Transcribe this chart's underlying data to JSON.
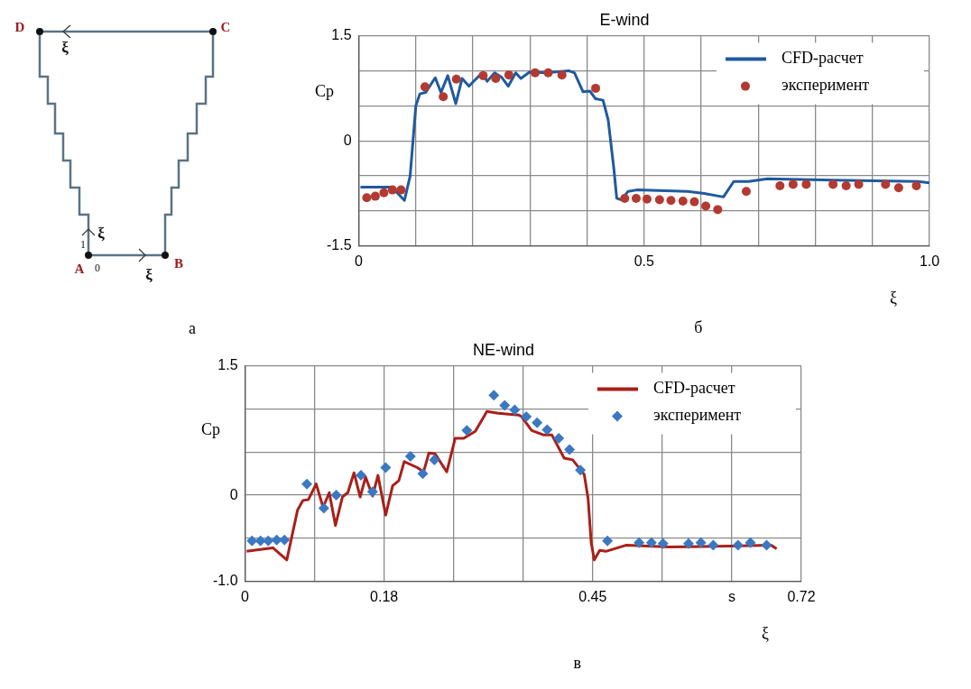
{
  "chart_data": [
    {
      "type": "other",
      "annotations": [
        "D",
        "C",
        "A",
        "B",
        "ξ",
        "ξ",
        "ξ",
        "1",
        "0",
        "а"
      ]
    },
    {
      "type": "line",
      "title": "E-wind",
      "ylabel": "Cp",
      "xlabel": "ξ",
      "annotations": [
        "б"
      ],
      "xlim": [
        0,
        1
      ],
      "ylim": [
        -1.5,
        1.5
      ],
      "xticks": [
        0,
        {
          "value": 0.1,
          "label": null
        },
        {
          "value": 0.2,
          "label": null
        },
        {
          "value": 0.3,
          "label": null
        },
        {
          "value": 0.4,
          "label": null
        },
        0.5,
        {
          "value": 0.6,
          "label": null
        },
        {
          "value": 0.7,
          "label": null
        },
        {
          "value": 0.8,
          "label": null
        },
        {
          "value": 0.9,
          "label": null
        },
        {
          "value": 1,
          "label": "1.0"
        }
      ],
      "yticks": [
        1.5,
        {
          "value": 1,
          "label": null
        },
        {
          "value": 0.5,
          "label": null
        },
        0,
        {
          "value": -0.5,
          "label": null
        },
        {
          "value": -1,
          "label": null
        },
        -1.5
      ],
      "grid": true,
      "legend": "top right",
      "series": [
        {
          "name": "CFD-расчет",
          "type": "line",
          "color": "#1f5a9e",
          "marker": "none",
          "x": [
            0.003,
            0.058,
            0.08,
            0.09,
            0.1,
            0.107,
            0.117,
            0.134,
            0.144,
            0.156,
            0.17,
            0.181,
            0.193,
            0.216,
            0.225,
            0.238,
            0.25,
            0.262,
            0.275,
            0.284,
            0.299,
            0.328,
            0.368,
            0.378,
            0.393,
            0.405,
            0.415,
            0.428,
            0.437,
            0.447,
            0.452,
            0.46,
            0.472,
            0.487,
            0.575,
            0.605,
            0.639,
            0.657,
            0.683,
            0.716,
            0.832,
            0.98,
            1.0
          ],
          "values": [
            -0.66,
            -0.66,
            -0.85,
            -0.5,
            0.5,
            0.67,
            0.69,
            0.9,
            0.69,
            0.93,
            0.53,
            0.89,
            0.78,
            0.97,
            0.85,
            0.97,
            0.91,
            0.78,
            0.97,
            0.89,
            0.98,
            0.97,
            1.0,
            0.97,
            0.7,
            0.71,
            0.6,
            0.58,
            0.3,
            -0.4,
            -0.82,
            -0.84,
            -0.72,
            -0.7,
            -0.72,
            -0.75,
            -0.8,
            -0.58,
            -0.58,
            -0.54,
            -0.56,
            -0.58,
            -0.6
          ]
        },
        {
          "name": "эксперимент",
          "type": "scatter",
          "color": "#b23a32",
          "marker": "circle",
          "x": [
            0.014,
            0.029,
            0.044,
            0.059,
            0.074,
            0.116,
            0.148,
            0.171,
            0.218,
            0.24,
            0.263,
            0.309,
            0.332,
            0.356,
            0.415,
            0.466,
            0.486,
            0.505,
            0.527,
            0.547,
            0.568,
            0.588,
            0.608,
            0.629,
            0.679,
            0.738,
            0.761,
            0.784,
            0.831,
            0.854,
            0.876,
            0.923,
            0.946,
            0.977
          ],
          "values": [
            -0.81,
            -0.79,
            -0.74,
            -0.7,
            -0.7,
            0.77,
            0.63,
            0.88,
            0.93,
            0.89,
            0.94,
            0.97,
            0.97,
            0.94,
            0.75,
            -0.82,
            -0.82,
            -0.83,
            -0.84,
            -0.85,
            -0.86,
            -0.87,
            -0.93,
            -0.98,
            -0.72,
            -0.64,
            -0.62,
            -0.62,
            -0.62,
            -0.64,
            -0.62,
            -0.62,
            -0.67,
            -0.64
          ]
        }
      ]
    },
    {
      "type": "line",
      "title": "NE-wind",
      "ylabel": "Cp",
      "xlabel": "ξ",
      "annotations": [
        "в"
      ],
      "xlim": [
        0,
        0.72
      ],
      "ylim": [
        -1,
        1.5
      ],
      "xticks": [
        0,
        {
          "value": 0.09,
          "label": null
        },
        0.18,
        {
          "value": 0.27,
          "label": null
        },
        {
          "value": 0.36,
          "label": null
        },
        0.45,
        {
          "value": 0.54,
          "label": null
        },
        {
          "value": 0.63,
          "label": "s"
        },
        0.72
      ],
      "yticks": [
        1.5,
        {
          "value": 1,
          "label": null
        },
        {
          "value": 0.5,
          "label": null
        },
        0,
        {
          "value": -0.5,
          "label": null
        },
        {
          "value": -1,
          "label": "-1.0"
        }
      ],
      "grid": true,
      "legend": "top right",
      "series": [
        {
          "name": "CFD-расчет",
          "type": "line",
          "color": "#a8201a",
          "marker": "none",
          "x": [
            0.002,
            0.036,
            0.054,
            0.068,
            0.075,
            0.082,
            0.092,
            0.101,
            0.109,
            0.117,
            0.126,
            0.133,
            0.141,
            0.149,
            0.156,
            0.165,
            0.172,
            0.182,
            0.191,
            0.199,
            0.206,
            0.223,
            0.231,
            0.238,
            0.246,
            0.261,
            0.272,
            0.283,
            0.298,
            0.313,
            0.328,
            0.354,
            0.358,
            0.371,
            0.386,
            0.397,
            0.413,
            0.424,
            0.439,
            0.444,
            0.448,
            0.452,
            0.459,
            0.467,
            0.493,
            0.549,
            0.628,
            0.681,
            0.688
          ],
          "values": [
            -0.65,
            -0.61,
            -0.75,
            -0.17,
            -0.06,
            -0.05,
            0.13,
            -0.14,
            0.03,
            -0.35,
            -0.02,
            0.03,
            0.26,
            -0.02,
            0.21,
            -0.01,
            0.23,
            -0.23,
            0.11,
            0.17,
            0.39,
            0.32,
            0.27,
            0.49,
            0.48,
            0.27,
            0.66,
            0.66,
            0.74,
            0.97,
            0.95,
            0.93,
            0.91,
            0.75,
            0.7,
            0.7,
            0.43,
            0.41,
            0.24,
            -0.04,
            -0.55,
            -0.75,
            -0.64,
            -0.65,
            -0.58,
            -0.6,
            -0.59,
            -0.58,
            -0.62
          ]
        },
        {
          "name": "эксперимент",
          "type": "scatter",
          "color": "#3a78c2",
          "marker": "diamond",
          "x": [
            0.009,
            0.02,
            0.03,
            0.041,
            0.051,
            0.08,
            0.102,
            0.118,
            0.15,
            0.165,
            0.182,
            0.214,
            0.23,
            0.245,
            0.287,
            0.322,
            0.336,
            0.349,
            0.364,
            0.378,
            0.391,
            0.406,
            0.42,
            0.434,
            0.469,
            0.51,
            0.526,
            0.541,
            0.574,
            0.59,
            0.606,
            0.638,
            0.654,
            0.675
          ],
          "values": [
            -0.53,
            -0.53,
            -0.53,
            -0.52,
            -0.52,
            0.13,
            -0.15,
            0.0,
            0.23,
            0.04,
            0.32,
            0.45,
            0.25,
            0.41,
            0.75,
            1.16,
            1.04,
            0.99,
            0.91,
            0.84,
            0.76,
            0.66,
            0.53,
            0.29,
            -0.53,
            -0.55,
            -0.55,
            -0.56,
            -0.56,
            -0.55,
            -0.58,
            -0.58,
            -0.55,
            -0.58
          ]
        }
      ]
    }
  ]
}
